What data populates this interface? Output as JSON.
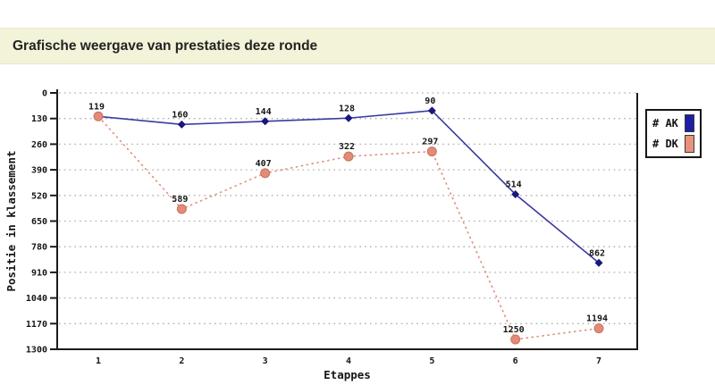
{
  "header": {
    "title": "Grafische weergave van prestaties deze ronde",
    "background": "#f3f3da"
  },
  "chart_data": {
    "type": "line",
    "title": "",
    "xlabel": "Etappes",
    "ylabel": "Positie in klassement",
    "categories": [
      "1",
      "2",
      "3",
      "4",
      "5",
      "6",
      "7"
    ],
    "yticks": [
      0,
      130,
      260,
      390,
      520,
      650,
      780,
      910,
      1040,
      1170,
      1300
    ],
    "ylim": [
      0,
      1300
    ],
    "y_axis_inverted": true,
    "grid": "horizontal dashed",
    "legend_position": "right of plot",
    "gridline_color": "#aeaeae",
    "axis_color": "#1b1b1b",
    "series": [
      {
        "name": "# AK",
        "values": [
          119,
          160,
          144,
          128,
          90,
          514,
          862
        ],
        "point_labels": [
          "",
          "160",
          "144",
          "128",
          "90",
          "514",
          "862"
        ],
        "color": "#3a3aa0",
        "marker": "diamond",
        "marker_color": "#17177e",
        "swatch_color": "#1f1fa6",
        "line_style": "solid"
      },
      {
        "name": "# DK",
        "values": [
          119,
          589,
          407,
          322,
          297,
          1250,
          1194
        ],
        "point_labels": [
          "119",
          "589",
          "407",
          "322",
          "297",
          "1250",
          "1194"
        ],
        "color": "#e0907e",
        "marker": "circle",
        "marker_color": "#e28b78",
        "marker_border": "#c9715d",
        "swatch_color": "#e8927e",
        "line_style": "dashed"
      }
    ]
  }
}
